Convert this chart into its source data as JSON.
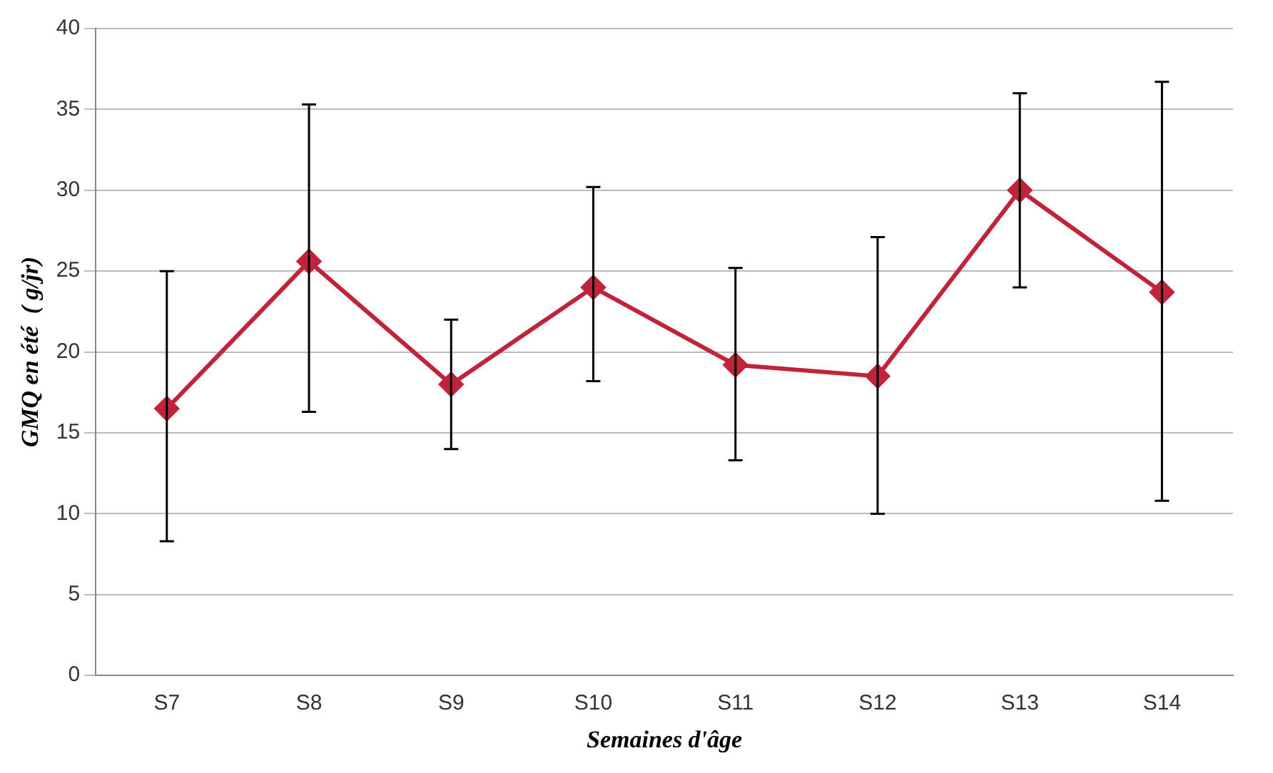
{
  "chart_data": {
    "type": "line",
    "xlabel": "Semaines d'âge",
    "ylabel": "GMQ en été  ( g/jr)",
    "categories": [
      "S7",
      "S8",
      "S9",
      "S10",
      "S11",
      "S12",
      "S13",
      "S14"
    ],
    "values": [
      16.5,
      25.6,
      18,
      24,
      19.2,
      18.5,
      30,
      23.7
    ],
    "errors": [
      [
        8.3,
        25
      ],
      [
        16.3,
        35.3
      ],
      [
        14,
        22
      ],
      [
        18.2,
        30.2
      ],
      [
        13.3,
        25.2
      ],
      [
        10,
        27.1
      ],
      [
        24,
        36
      ],
      [
        10.8,
        36.7
      ]
    ],
    "color": "#c0243a",
    "marker": "diamond",
    "line_style": "solid",
    "ylim": [
      0,
      40
    ],
    "yticks": [
      0,
      5,
      10,
      15,
      20,
      25,
      30,
      35,
      40
    ],
    "grid": "y",
    "legend": false
  }
}
